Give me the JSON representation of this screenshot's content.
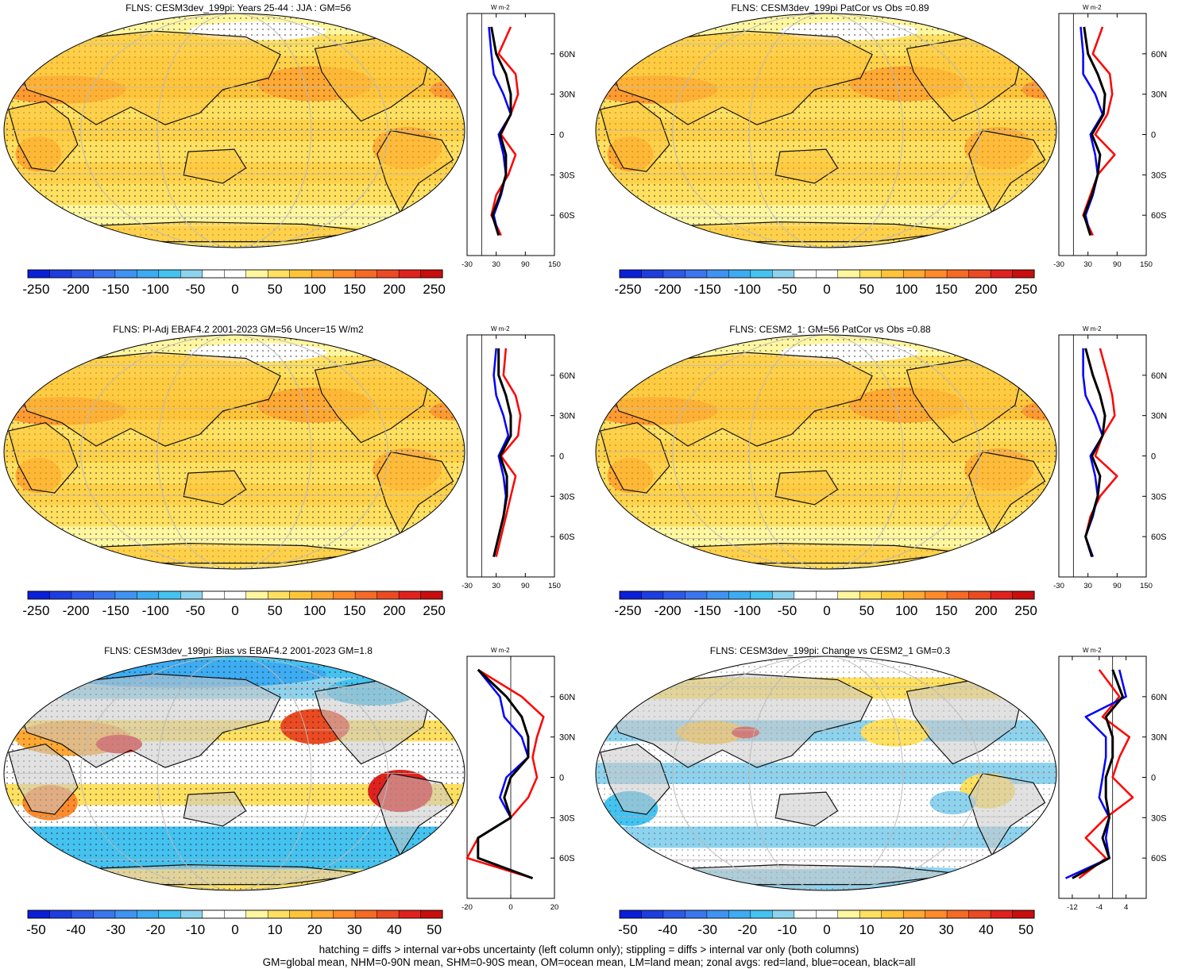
{
  "panels": [
    {
      "title": "FLNS: CESM3dev_199pi: Years 25-44 : JJA : GM=56",
      "scale": "abs",
      "style": "warm"
    },
    {
      "title": "FLNS: CESM3dev_199pi PatCor vs Obs =0.89",
      "scale": "abs",
      "style": "warm"
    },
    {
      "title": "FLNS: PI-Adj EBAF4.2 2001-2023 GM=56 Uncer=15 W/m2",
      "scale": "abs",
      "style": "warm"
    },
    {
      "title": "FLNS: CESM2_1: GM=56 PatCor vs Obs =0.88",
      "scale": "abs",
      "style": "warm"
    },
    {
      "title": "FLNS: CESM3dev_199pi: Bias vs EBAF4.2 2001-2023 GM=1.8",
      "scale": "diff",
      "style": "bias"
    },
    {
      "title": "FLNS: CESM3dev_199pi: Change vs CESM2_1 GM=0.3",
      "scale": "diff",
      "style": "change"
    }
  ],
  "colorbars": {
    "abs": {
      "labels": [
        "-250",
        "-200",
        "-150",
        "-100",
        "-50",
        "0",
        "50",
        "100",
        "150",
        "200",
        "250"
      ]
    },
    "diff": {
      "labels": [
        "-50",
        "-40",
        "-30",
        "-20",
        "-10",
        "0",
        "10",
        "20",
        "30",
        "40",
        "50"
      ]
    },
    "colors": [
      "#0a1fd6",
      "#1e3de0",
      "#2f5ae8",
      "#3b76ee",
      "#3f93f2",
      "#3dacf2",
      "#44c2f0",
      "#8ed3ee",
      "#ffffff",
      "#ffffff",
      "#fff6a0",
      "#ffe060",
      "#ffc53a",
      "#ffa832",
      "#ff8a2a",
      "#f56a26",
      "#eb4a22",
      "#e0221e",
      "#c80e0e"
    ]
  },
  "zonal": {
    "unit": "W m-2",
    "lat_ticks": [
      "60N",
      "30N",
      "0",
      "30S",
      "60S"
    ],
    "abs_ticks": [
      "-30",
      "30",
      "90",
      "150"
    ],
    "bias_ticks": [
      "-20",
      "0",
      "20"
    ],
    "change_ticks": [
      "-12",
      "-4",
      "4"
    ]
  },
  "footer": {
    "line1": "hatching = diffs > internal var+obs uncertainty (left column only); stippling = diffs > internal var only (both columns)",
    "line2": "GM=global mean, NHM=0-90N mean, SHM=0-90S mean, OM=ocean mean, LM=land mean; zonal avgs: red=land, blue=ocean, black=all"
  },
  "chart_data": [
    {
      "type": "heatmap",
      "title": "FLNS: CESM3dev_199pi: Years 25-44 : JJA : GM=56",
      "clim": [
        -250,
        250
      ],
      "zonal_mean": {
        "lat": [
          80,
          60,
          45,
          30,
          15,
          0,
          -15,
          -30,
          -45,
          -60,
          -75
        ],
        "land": [
          60,
          35,
          70,
          75,
          60,
          40,
          70,
          55,
          30,
          20,
          40
        ],
        "ocean": [
          15,
          20,
          25,
          45,
          60,
          35,
          45,
          50,
          40,
          25,
          35
        ],
        "all": [
          20,
          30,
          50,
          60,
          60,
          38,
          50,
          50,
          38,
          22,
          35
        ]
      }
    },
    {
      "type": "heatmap",
      "title": "FLNS: CESM3dev_199pi PatCor vs Obs =0.89",
      "clim": [
        -250,
        250
      ],
      "zonal_mean": {
        "lat": [
          80,
          60,
          45,
          30,
          15,
          0,
          -15,
          -30,
          -45,
          -60,
          -75
        ],
        "land": [
          60,
          40,
          75,
          80,
          70,
          45,
          85,
          50,
          35,
          20,
          40
        ],
        "ocean": [
          15,
          20,
          20,
          45,
          60,
          35,
          45,
          50,
          40,
          25,
          35
        ],
        "all": [
          22,
          30,
          50,
          65,
          62,
          38,
          55,
          50,
          38,
          22,
          35
        ]
      }
    },
    {
      "type": "heatmap",
      "title": "FLNS: PI-Adj EBAF4.2 2001-2023 GM=56 Uncer=15 W/m2",
      "clim": [
        -250,
        250
      ],
      "zonal_mean": {
        "lat": [
          80,
          60,
          45,
          30,
          15,
          0,
          -15,
          -30,
          -45,
          -60,
          -75
        ],
        "land": [
          50,
          45,
          70,
          80,
          75,
          40,
          70,
          60,
          50,
          40,
          30
        ],
        "ocean": [
          30,
          25,
          30,
          45,
          55,
          35,
          45,
          50,
          45,
          35,
          25
        ],
        "all": [
          35,
          35,
          50,
          60,
          60,
          38,
          52,
          52,
          45,
          35,
          25
        ]
      }
    },
    {
      "type": "heatmap",
      "title": "FLNS: CESM2_1: GM=56 PatCor vs Obs =0.88",
      "clim": [
        -250,
        250
      ],
      "zonal_mean": {
        "lat": [
          80,
          60,
          45,
          30,
          15,
          0,
          -15,
          -30,
          -45,
          -60,
          -75
        ],
        "land": [
          55,
          70,
          80,
          85,
          60,
          45,
          90,
          55,
          35,
          25,
          40
        ],
        "ocean": [
          20,
          20,
          25,
          45,
          60,
          35,
          45,
          50,
          40,
          25,
          40
        ],
        "all": [
          25,
          40,
          55,
          65,
          60,
          38,
          55,
          50,
          38,
          25,
          38
        ]
      }
    },
    {
      "type": "heatmap",
      "title": "FLNS: CESM3dev_199pi: Bias vs EBAF4.2 2001-2023 GM=1.8",
      "clim": [
        -50,
        50
      ],
      "zonal_mean": {
        "lat": [
          80,
          60,
          45,
          30,
          15,
          0,
          -15,
          -30,
          -45,
          -60,
          -75
        ],
        "land": [
          -15,
          5,
          15,
          12,
          10,
          12,
          8,
          0,
          -15,
          -20,
          10
        ],
        "ocean": [
          -15,
          -5,
          -3,
          5,
          8,
          -2,
          -5,
          0,
          -15,
          -15,
          10
        ],
        "all": [
          -15,
          -2,
          5,
          8,
          8,
          0,
          -3,
          0,
          -15,
          -15,
          10
        ]
      }
    },
    {
      "type": "heatmap",
      "title": "FLNS: CESM3dev_199pi: Change vs CESM2_1 GM=0.3",
      "clim": [
        -50,
        50
      ],
      "zonal_mean": {
        "lat": [
          80,
          60,
          45,
          30,
          15,
          0,
          -15,
          -30,
          -45,
          -60,
          -75
        ],
        "land": [
          -4,
          2,
          -3,
          5,
          2,
          0,
          6,
          -2,
          -8,
          -2,
          -10
        ],
        "ocean": [
          2,
          4,
          -8,
          -2,
          -2,
          -3,
          -4,
          -1,
          -2,
          -1,
          -14
        ],
        "all": [
          0,
          3,
          -2,
          0,
          0,
          -2,
          -2,
          -1,
          -3,
          -1,
          -12
        ]
      }
    }
  ]
}
